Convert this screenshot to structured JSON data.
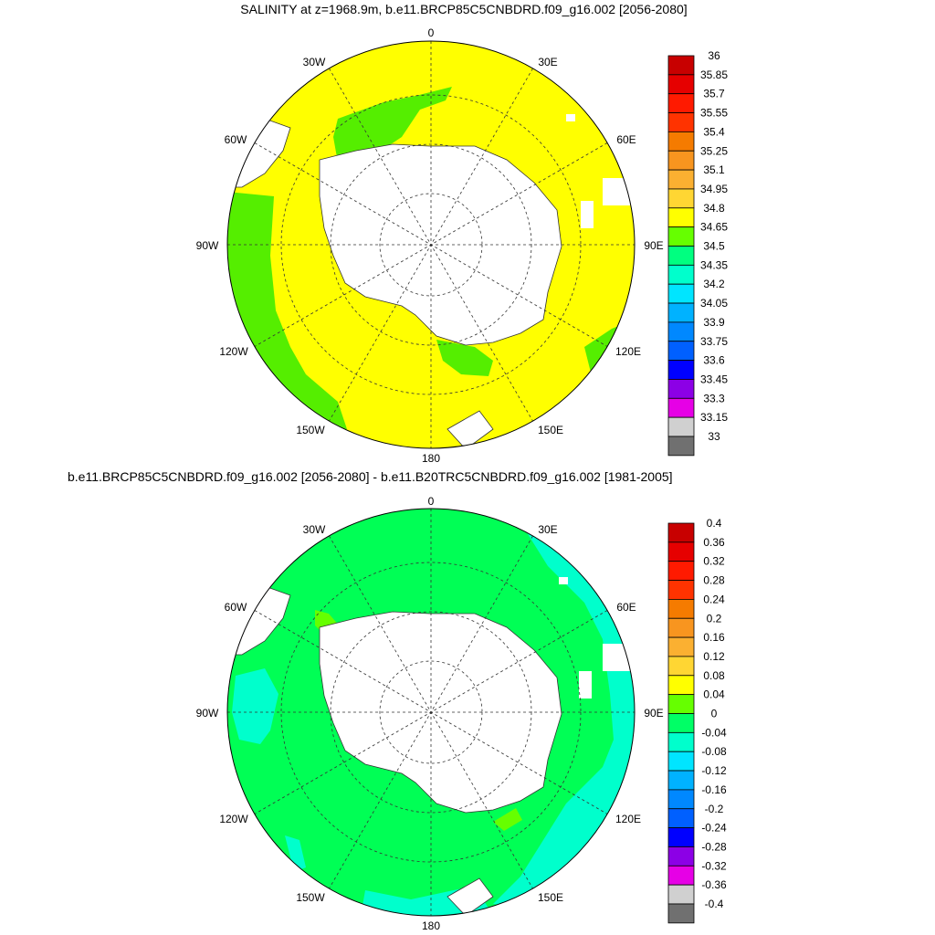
{
  "titles": {
    "top": "SALINITY at z=1968.9m, b.e11.BRCP85C5CNBDRD.f09_g16.002 [2056-2080]",
    "bottom": "b.e11.BRCP85C5CNBDRD.f09_g16.002 [2056-2080] - b.e11.B20TRC5CNBDRD.f09_g16.002 [1981-2005]"
  },
  "longitude_labels": {
    "top": "0",
    "30e": "30E",
    "60e": "60E",
    "90e": "90E",
    "120e": "120E",
    "150e": "150E",
    "bottom": "180",
    "150w": "150W",
    "120w": "120W",
    "90w": "90W",
    "60w": "60W",
    "30w": "30W"
  },
  "colorbar_top": {
    "labels": [
      "36",
      "35.85",
      "35.7",
      "35.55",
      "35.4",
      "35.25",
      "35.1",
      "34.95",
      "34.8",
      "34.65",
      "34.5",
      "34.35",
      "34.2",
      "34.05",
      "33.9",
      "33.75",
      "33.6",
      "33.45",
      "33.3",
      "33.15",
      "33"
    ],
    "colors": [
      "#c80000",
      "#e60000",
      "#ff1a00",
      "#ff3300",
      "#f57b00",
      "#f8951f",
      "#fbb031",
      "#ffd633",
      "#ffff00",
      "#66ff00",
      "#00ff80",
      "#00ffcc",
      "#00e5ff",
      "#00b2ff",
      "#0088ff",
      "#0060ff",
      "#0000ff",
      "#8c00e6",
      "#e600e6",
      "#d0d0d0",
      "#707070"
    ]
  },
  "colorbar_bottom": {
    "labels": [
      "0.4",
      "0.36",
      "0.32",
      "0.28",
      "0.24",
      "0.2",
      "0.16",
      "0.12",
      "0.08",
      "0.04",
      "0",
      "-0.04",
      "-0.08",
      "-0.12",
      "-0.16",
      "-0.2",
      "-0.24",
      "-0.28",
      "-0.32",
      "-0.36",
      "-0.4"
    ],
    "colors": [
      "#c80000",
      "#e60000",
      "#ff1a00",
      "#ff3300",
      "#f57b00",
      "#f8951f",
      "#fbb031",
      "#ffd633",
      "#ffff00",
      "#66ff00",
      "#00ff66",
      "#00ffcc",
      "#00e5ff",
      "#00b2ff",
      "#0088ff",
      "#0060ff",
      "#0000ff",
      "#8c00e6",
      "#e600e6",
      "#d0d0d0",
      "#707070"
    ]
  },
  "map_colors": {
    "top_main": "#ffff00",
    "top_secondary": "#55ee00",
    "bottom_main": "#00ff55",
    "bottom_secondary": "#00ffcc",
    "bottom_tertiary": "#66ff00",
    "land": "#ffffff"
  }
}
